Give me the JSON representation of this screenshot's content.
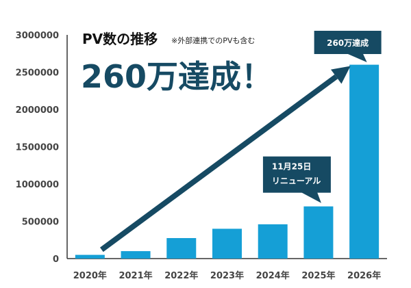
{
  "chart_data": {
    "type": "bar",
    "title": "PV数の推移",
    "note": "※外部連携でのPVも含む",
    "headline": "260万達成！",
    "categories": [
      "2020年",
      "2021年",
      "2022年",
      "2023年",
      "2024年",
      "2025年",
      "2026年"
    ],
    "values": [
      50000,
      100000,
      275000,
      400000,
      460000,
      700000,
      2600000
    ],
    "ylim": [
      0,
      3000000
    ],
    "yticks": [
      "0",
      "500000",
      "1000000",
      "1500000",
      "2000000",
      "2500000",
      "3000000"
    ],
    "grid": false,
    "annotations": [
      {
        "category": "2025年",
        "lines": [
          "11月25日",
          "リニューアル"
        ]
      },
      {
        "category": "2026年",
        "lines": [
          "260万達成"
        ]
      }
    ],
    "trend_arrow": {
      "from": "2020年",
      "to": "2026年"
    },
    "colors": {
      "bar": "#159fd6",
      "dark": "#164a63",
      "axis": "#333333"
    }
  }
}
